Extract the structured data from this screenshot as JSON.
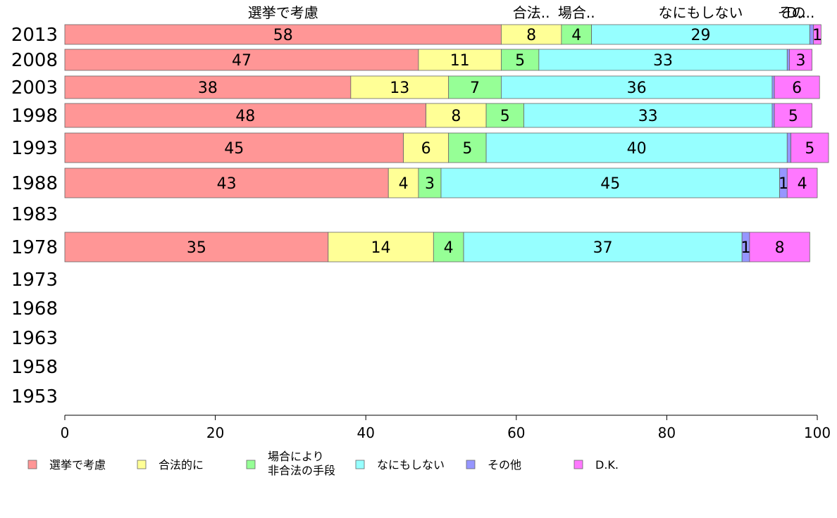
{
  "chart_data": {
    "type": "bar",
    "orientation": "horizontal",
    "stacked": true,
    "title": "",
    "xlabel": "",
    "ylabel": "",
    "xlim": [
      0,
      100
    ],
    "x_ticks": [
      0,
      20,
      40,
      60,
      80,
      100
    ],
    "x_tick_labels": [
      "0",
      "20",
      "40",
      "60",
      "80",
      "100"
    ],
    "grid": false,
    "legend_position": "bottom",
    "categories": [
      "2013",
      "2008",
      "2003",
      "1998",
      "1993",
      "1988",
      "1983",
      "1978",
      "1973",
      "1968",
      "1963",
      "1958",
      "1953"
    ],
    "series": [
      {
        "name": "選挙で考慮",
        "legend_label": [
          "選挙で考慮"
        ],
        "top_label": "選挙で考慮",
        "color": "#ff9696",
        "values": [
          58,
          47,
          38,
          48,
          45,
          43,
          null,
          35,
          null,
          null,
          null,
          null,
          null
        ]
      },
      {
        "name": "合法的に",
        "legend_label": [
          "合法的に"
        ],
        "top_label": "合法..",
        "color": "#ffff96",
        "values": [
          8,
          11,
          13,
          8,
          6,
          4,
          null,
          14,
          null,
          null,
          null,
          null,
          null
        ]
      },
      {
        "name": "場合により非合法の手段",
        "legend_label": [
          "場合により",
          "非合法の手段"
        ],
        "top_label": "場合..",
        "color": "#96ff96",
        "values": [
          4,
          5,
          7,
          5,
          5,
          3,
          null,
          4,
          null,
          null,
          null,
          null,
          null
        ]
      },
      {
        "name": "なにもしない",
        "legend_label": [
          "なにもしない"
        ],
        "top_label": "なにもしない",
        "color": "#96ffff",
        "values": [
          29,
          33,
          36,
          33,
          40,
          45,
          null,
          37,
          null,
          null,
          null,
          null,
          null
        ]
      },
      {
        "name": "その他",
        "legend_label": [
          "その他"
        ],
        "top_label": "その..",
        "color": "#9696ff",
        "values": [
          0.5,
          0.3,
          0.3,
          0.3,
          0.5,
          1,
          null,
          1,
          null,
          null,
          null,
          null,
          null
        ]
      },
      {
        "name": "D.K.",
        "legend_label": [
          "D.K."
        ],
        "top_label": "D..",
        "color": "#ff78ff",
        "values": [
          1,
          3,
          6,
          5,
          5,
          4,
          null,
          8,
          null,
          null,
          null,
          null,
          null
        ]
      }
    ],
    "segment_labels": [
      [
        "58",
        "8",
        "4",
        "29",
        "",
        "1"
      ],
      [
        "47",
        "11",
        "5",
        "33",
        "",
        "3"
      ],
      [
        "38",
        "13",
        "7",
        "36",
        "",
        "6"
      ],
      [
        "48",
        "8",
        "5",
        "33",
        "",
        "5"
      ],
      [
        "45",
        "6",
        "5",
        "40",
        "",
        "5"
      ],
      [
        "43",
        "4",
        "3",
        "45",
        "1",
        "4"
      ],
      [
        "",
        "",
        "",
        "",
        "",
        ""
      ],
      [
        "35",
        "14",
        "4",
        "37",
        "1",
        "8"
      ],
      [
        "",
        "",
        "",
        "",
        "",
        ""
      ],
      [
        "",
        "",
        "",
        "",
        "",
        ""
      ],
      [
        "",
        "",
        "",
        "",
        "",
        ""
      ],
      [
        "",
        "",
        "",
        "",
        "",
        ""
      ],
      [
        "",
        "",
        "",
        "",
        "",
        ""
      ]
    ]
  }
}
